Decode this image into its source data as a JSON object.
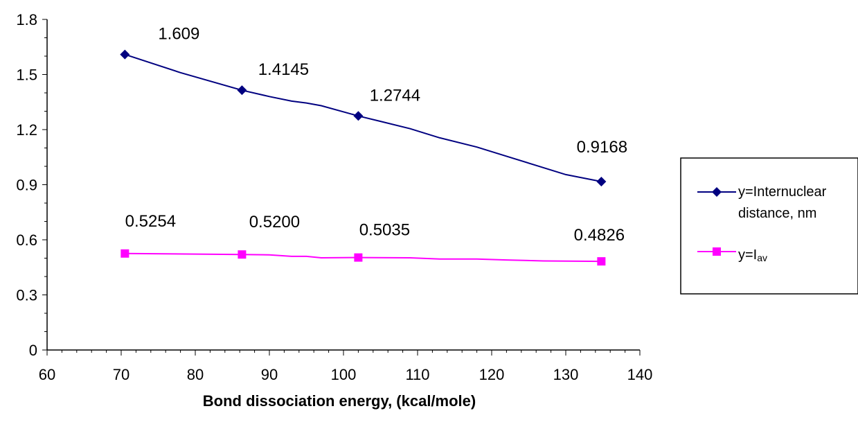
{
  "chart_data": {
    "type": "line",
    "title": "",
    "xlabel": "Bond dissociation energy, (kcal/mole)",
    "ylabel": "",
    "xlim": [
      60,
      140
    ],
    "ylim": [
      0,
      1.8
    ],
    "xticks": [
      60,
      70,
      80,
      90,
      100,
      110,
      120,
      130,
      140
    ],
    "yticks": [
      "0",
      "0.3",
      "0.6",
      "0.9",
      "1.2",
      "1.5",
      "1.8"
    ],
    "grid": false,
    "legend_position": "right",
    "series": [
      {
        "name_line1": "y=Internuclear",
        "name_line2": "distance, nm",
        "color": "#000080",
        "marker": "diamond",
        "points": [
          [
            70.5,
            1.609
          ],
          [
            86.3,
            1.4145
          ],
          [
            102.0,
            1.2744
          ],
          [
            134.8,
            0.9168
          ]
        ],
        "curve": [
          [
            70.5,
            1.609
          ],
          [
            78,
            1.51
          ],
          [
            86.3,
            1.4145
          ],
          [
            90,
            1.38
          ],
          [
            93,
            1.355
          ],
          [
            95,
            1.345
          ],
          [
            97,
            1.33
          ],
          [
            102.0,
            1.2744
          ],
          [
            105,
            1.245
          ],
          [
            109,
            1.205
          ],
          [
            113,
            1.155
          ],
          [
            118,
            1.105
          ],
          [
            122,
            1.055
          ],
          [
            126,
            1.005
          ],
          [
            130,
            0.955
          ],
          [
            134.8,
            0.9168
          ]
        ],
        "labels": [
          "1.609",
          "1.4145",
          "1.2744",
          "0.9168"
        ]
      },
      {
        "name_prefix": "y=I",
        "name_sub": "av",
        "color": "#ff00ff",
        "marker": "square",
        "points": [
          [
            70.5,
            0.5254
          ],
          [
            86.3,
            0.52
          ],
          [
            102.0,
            0.5035
          ],
          [
            134.8,
            0.4826
          ]
        ],
        "curve": [
          [
            70.5,
            0.5254
          ],
          [
            86.3,
            0.52
          ],
          [
            90,
            0.518
          ],
          [
            93,
            0.51
          ],
          [
            95,
            0.51
          ],
          [
            97,
            0.502
          ],
          [
            102.0,
            0.5035
          ],
          [
            109,
            0.502
          ],
          [
            113,
            0.495
          ],
          [
            118,
            0.495
          ],
          [
            122,
            0.49
          ],
          [
            127,
            0.485
          ],
          [
            134.8,
            0.4826
          ]
        ],
        "labels": [
          "0.5254",
          "0.5200",
          "0.5035",
          "0.4826"
        ]
      }
    ]
  }
}
